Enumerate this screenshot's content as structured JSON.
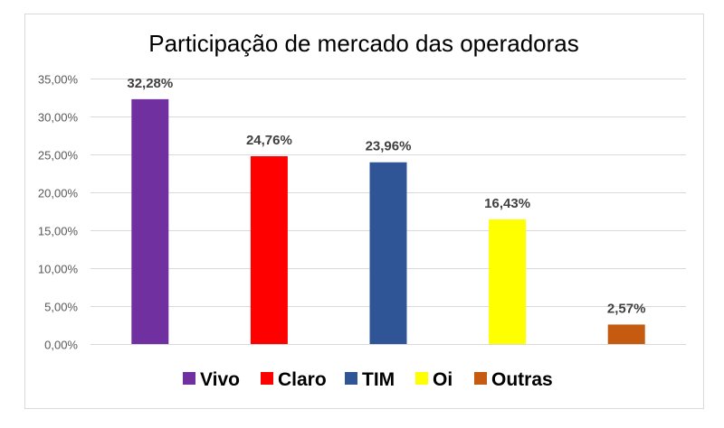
{
  "chart_data": {
    "type": "bar",
    "title": "Participação de mercado das operadoras",
    "categories": [
      "Vivo",
      "Claro",
      "TIM",
      "Oi",
      "Outras"
    ],
    "values": [
      32.28,
      24.76,
      23.96,
      16.43,
      2.57
    ],
    "data_labels": [
      "32,28%",
      "24,76%",
      "23,96%",
      "16,43%",
      "2,57%"
    ],
    "colors": [
      "#7030A0",
      "#FF0000",
      "#2F5597",
      "#FFFF00",
      "#C55A11"
    ],
    "ylim": [
      0,
      35
    ],
    "yticks": [
      0,
      5,
      10,
      15,
      20,
      25,
      30,
      35
    ],
    "ytick_labels": [
      "0,00%",
      "5,00%",
      "10,00%",
      "15,00%",
      "20,00%",
      "25,00%",
      "30,00%",
      "35,00%"
    ],
    "xlabel": "",
    "ylabel": "",
    "grid": true,
    "legend_position": "bottom"
  }
}
